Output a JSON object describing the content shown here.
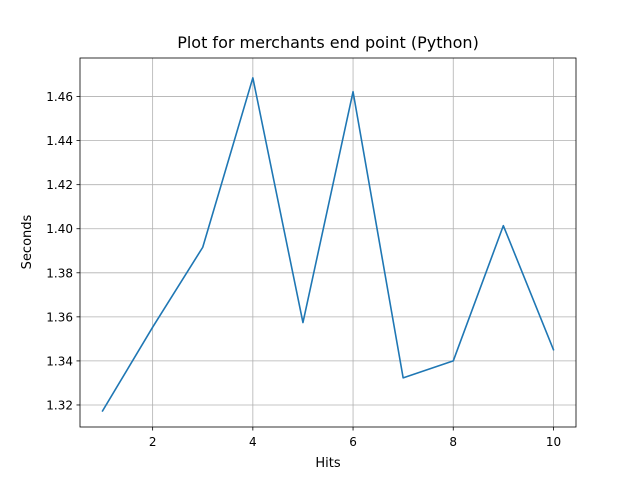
{
  "chart_data": {
    "type": "line",
    "title": "Plot for merchants end point (Python)",
    "xlabel": "Hits",
    "ylabel": "Seconds",
    "xlim": [
      0.55,
      10.45
    ],
    "ylim": [
      1.31,
      1.4775
    ],
    "xticks": [
      2,
      4,
      6,
      8,
      10
    ],
    "xtick_labels": [
      "2",
      "4",
      "6",
      "8",
      "10"
    ],
    "yticks": [
      1.32,
      1.34,
      1.36,
      1.38,
      1.4,
      1.42,
      1.44,
      1.46
    ],
    "ytick_labels": [
      "1.32",
      "1.34",
      "1.36",
      "1.38",
      "1.40",
      "1.42",
      "1.44",
      "1.46"
    ],
    "grid": true,
    "series": [
      {
        "color": "#1f77b4",
        "x": [
          1,
          2,
          3,
          4,
          5,
          6,
          7,
          8,
          9,
          10
        ],
        "y": [
          1.3173,
          1.3553,
          1.3916,
          1.4685,
          1.3574,
          1.4622,
          1.3323,
          1.34,
          1.4014,
          1.3451
        ]
      }
    ]
  }
}
